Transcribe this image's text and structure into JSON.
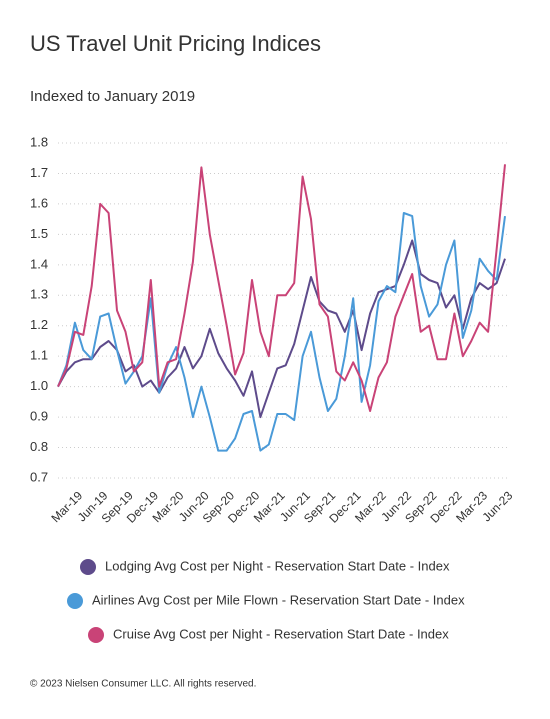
{
  "chart_data": {
    "type": "line",
    "title": "US Travel Unit Pricing Indices",
    "subtitle": "Indexed to January 2019",
    "categories": [
      null,
      null,
      "Mar-19",
      null,
      null,
      "Jun-19",
      null,
      null,
      "Sep-19",
      null,
      null,
      "Dec-19",
      null,
      null,
      "Mar-20",
      null,
      null,
      "Jun-20",
      null,
      null,
      "Sep-20",
      null,
      null,
      "Dec-20",
      null,
      null,
      "Mar-21",
      null,
      null,
      "Jun-21",
      null,
      null,
      "Sep-21",
      null,
      null,
      "Dec-21",
      null,
      null,
      "Mar-22",
      null,
      null,
      "Jun-22",
      null,
      null,
      "Sep-22",
      null,
      null,
      "Dec-22",
      null,
      null,
      "Mar-23",
      null,
      null,
      "Jun-23"
    ],
    "series": [
      {
        "name": "Lodging Avg Cost per Night - Reservation Start Date - Index",
        "color": "#5e4b8b",
        "values": [
          1.0,
          1.05,
          1.08,
          1.09,
          1.09,
          1.13,
          1.15,
          1.12,
          1.05,
          1.07,
          1.0,
          1.02,
          0.98,
          1.03,
          1.06,
          1.13,
          1.06,
          1.1,
          1.19,
          1.11,
          1.06,
          1.02,
          0.97,
          1.05,
          0.9,
          0.98,
          1.06,
          1.07,
          1.14,
          1.25,
          1.36,
          1.28,
          1.25,
          1.24,
          1.18,
          1.25,
          1.12,
          1.24,
          1.31,
          1.32,
          1.33,
          1.4,
          1.48,
          1.37,
          1.35,
          1.34,
          1.26,
          1.3,
          1.19,
          1.29,
          1.34,
          1.32,
          1.34,
          1.42
        ]
      },
      {
        "name": "Airlines Avg Cost per Mile Flown - Reservation Start Date - Index",
        "color": "#4a9ad8",
        "values": [
          1.0,
          1.07,
          1.21,
          1.12,
          1.09,
          1.23,
          1.24,
          1.12,
          1.01,
          1.05,
          1.1,
          1.29,
          0.98,
          1.07,
          1.13,
          1.03,
          0.9,
          1.0,
          0.9,
          0.79,
          0.79,
          0.83,
          0.91,
          0.92,
          0.79,
          0.81,
          0.91,
          0.91,
          0.89,
          1.1,
          1.18,
          1.03,
          0.92,
          0.96,
          1.1,
          1.29,
          0.95,
          1.07,
          1.28,
          1.33,
          1.31,
          1.57,
          1.56,
          1.33,
          1.23,
          1.27,
          1.4,
          1.48,
          1.16,
          1.25,
          1.42,
          1.38,
          1.35,
          1.56
        ]
      },
      {
        "name": "Cruise Avg Cost per Night - Reservation Start Date - Index",
        "color": "#c94377",
        "values": [
          1.0,
          1.06,
          1.18,
          1.17,
          1.33,
          1.6,
          1.57,
          1.25,
          1.18,
          1.05,
          1.08,
          1.35,
          1.0,
          1.08,
          1.09,
          1.24,
          1.41,
          1.72,
          1.5,
          1.35,
          1.2,
          1.04,
          1.11,
          1.35,
          1.18,
          1.1,
          1.3,
          1.3,
          1.34,
          1.69,
          1.55,
          1.27,
          1.23,
          1.05,
          1.02,
          1.08,
          1.02,
          0.92,
          1.03,
          1.08,
          1.23,
          1.3,
          1.37,
          1.18,
          1.2,
          1.09,
          1.09,
          1.24,
          1.1,
          1.15,
          1.21,
          1.18,
          1.45,
          1.73
        ]
      }
    ],
    "ylim": [
      0.7,
      1.8
    ],
    "yticks": [
      0.7,
      0.8,
      0.9,
      {
        "value": 1.0,
        "label": "1.0"
      },
      1.1,
      1.2,
      1.3,
      1.4,
      1.5,
      1.6,
      1.7,
      1.8
    ],
    "grid": true
  },
  "footer": "© 2023 Nielsen Consumer LLC. All rights reserved."
}
